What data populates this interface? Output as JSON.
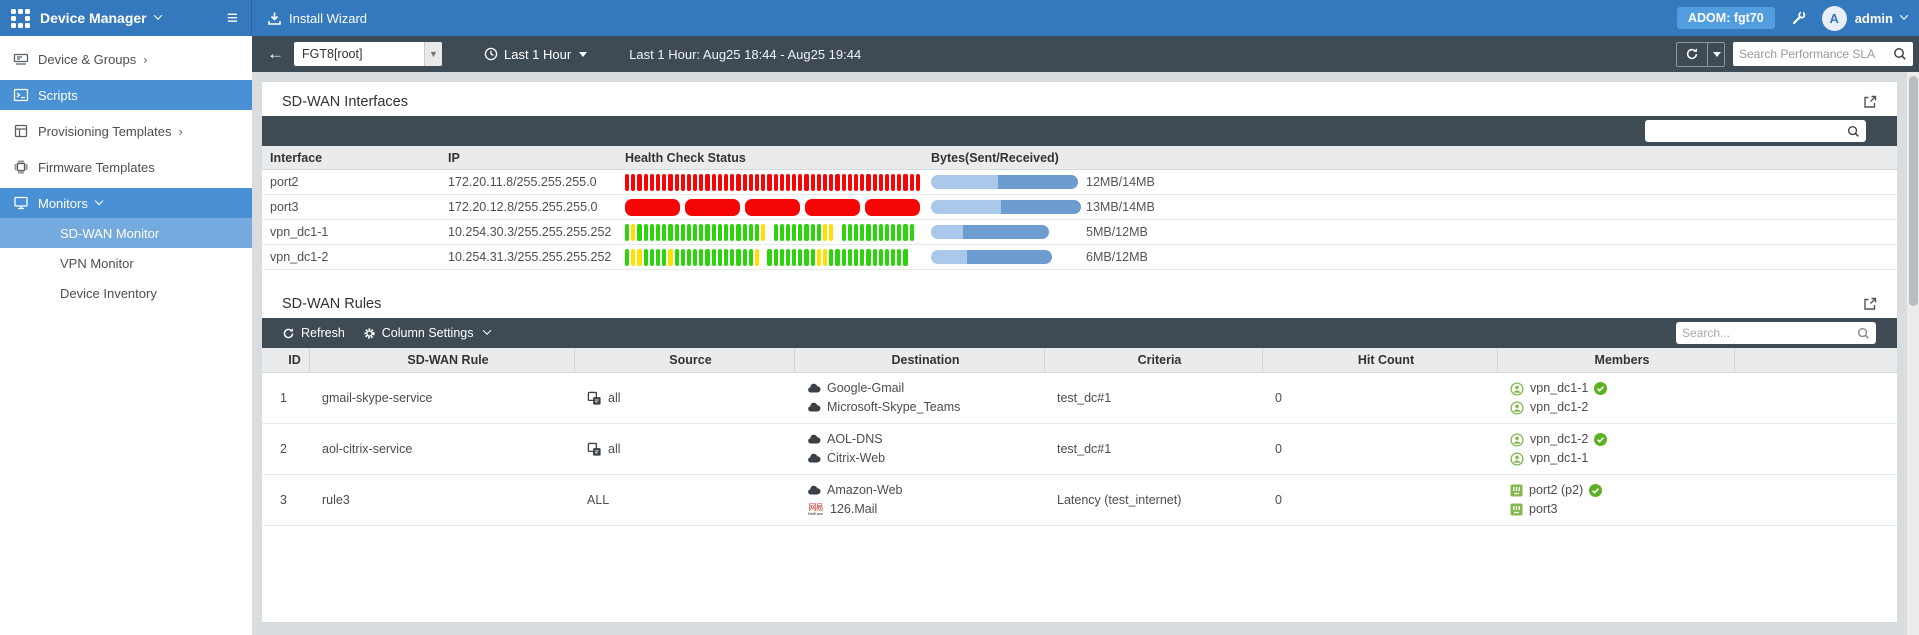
{
  "topbar": {
    "app_title": "Device Manager",
    "install_wizard": "Install Wizard",
    "adom_label": "ADOM: fgt70",
    "avatar_letter": "A",
    "username": "admin",
    "hamburger_glyph": "≡"
  },
  "sidebar": {
    "items": [
      {
        "label": "Device & Groups",
        "chevron": "›"
      },
      {
        "label": "Scripts",
        "chevron": ""
      },
      {
        "label": "Provisioning Templates",
        "chevron": "›"
      },
      {
        "label": "Firmware Templates",
        "chevron": ""
      },
      {
        "label": "Monitors",
        "chevron": ""
      }
    ],
    "subitems": [
      {
        "label": "SD-WAN Monitor"
      },
      {
        "label": "VPN Monitor"
      },
      {
        "label": "Device Inventory"
      }
    ]
  },
  "toolbar": {
    "back_glyph": "←",
    "device_select_value": "FGT8[root]",
    "select_caret": "▼",
    "time_range_button": "Last 1 Hour",
    "time_range_text": "Last 1 Hour: Aug25 18:44 - Aug25 19:44",
    "search_placeholder": "Search Performance SLA"
  },
  "interfaces_panel": {
    "title": "SD-WAN Interfaces",
    "search_placeholder": "",
    "columns": [
      "Interface",
      "IP",
      "Health Check Status",
      "Bytes(Sent/Received)"
    ],
    "rows": [
      {
        "interface": "port2",
        "ip": "172.20.11.8/255.255.255.0",
        "health": "rrrrrrrrrrrrrrrrrrrrrrrrrrrrrrrrrrrrrrrrrrrrrrrr",
        "bytes": "12MB/14MB",
        "bar": {
          "light": 67,
          "dark": 80
        }
      },
      {
        "interface": "port3",
        "ip": "172.20.12.8/255.255.255.0",
        "health": "RRRRR",
        "bytes": "13MB/14MB",
        "bar": {
          "light": 70,
          "dark": 80
        }
      },
      {
        "interface": "vpn_dc1-1",
        "ip": "10.254.30.3/255.255.255.252",
        "health": "gyggggggggggggggggggggy_ggggggggyy_gggggggggggg",
        "bytes": "5MB/12MB",
        "bar": {
          "light": 32,
          "dark": 86
        }
      },
      {
        "interface": "vpn_dc1-2",
        "ip": "10.254.31.3/255.255.255.252",
        "health": "gyyggggygggggggggggggy_ggggggggyyggggggggggggg",
        "bytes": "6MB/12MB",
        "bar": {
          "light": 36,
          "dark": 85
        }
      }
    ]
  },
  "rules_panel": {
    "title": "SD-WAN Rules",
    "refresh_label": "Refresh",
    "column_settings_label": "Column Settings",
    "search_placeholder": "Search...",
    "columns": [
      "ID",
      "SD-WAN Rule",
      "Source",
      "Destination",
      "Criteria",
      "Hit Count",
      "Members"
    ],
    "netease_glyph": "网易",
    "netease_caption": "NetEase",
    "rows": [
      {
        "id": "1",
        "rule": "gmail-skype-service",
        "source": {
          "icon": "address-group",
          "label": "all"
        },
        "destinations": [
          {
            "icon": "app",
            "label": "Google-Gmail"
          },
          {
            "icon": "app",
            "label": "Microsoft-Skype_Teams"
          }
        ],
        "criteria": "test_dc#1",
        "hit_count": "0",
        "members": [
          {
            "icon": "vpn",
            "label": "vpn_dc1-1",
            "check": true
          },
          {
            "icon": "vpn",
            "label": "vpn_dc1-2",
            "check": false
          }
        ]
      },
      {
        "id": "2",
        "rule": "aol-citrix-service",
        "source": {
          "icon": "address-group",
          "label": "all"
        },
        "destinations": [
          {
            "icon": "app",
            "label": "AOL-DNS"
          },
          {
            "icon": "app",
            "label": "Citrix-Web"
          }
        ],
        "criteria": "test_dc#1",
        "hit_count": "0",
        "members": [
          {
            "icon": "vpn",
            "label": "vpn_dc1-2",
            "check": true
          },
          {
            "icon": "vpn",
            "label": "vpn_dc1-1",
            "check": false
          }
        ]
      },
      {
        "id": "3",
        "rule": "rule3",
        "source": {
          "icon": "none",
          "label": "ALL"
        },
        "destinations": [
          {
            "icon": "app",
            "label": "Amazon-Web"
          },
          {
            "icon": "netease",
            "label": "126.Mail"
          }
        ],
        "criteria": "Latency (test_internet)",
        "hit_count": "0",
        "members": [
          {
            "icon": "port",
            "label": "port2 (p2)",
            "check": true
          },
          {
            "icon": "port",
            "label": "port3",
            "check": false
          }
        ]
      }
    ]
  },
  "colors": {
    "health_red": "#f60505",
    "health_green": "#2bd40b",
    "health_yellow": "#ffe100",
    "bytes_light": "#aac8ea",
    "bytes_dark": "#6d9cd1",
    "member_green": "#84b94e",
    "check_green": "#5cb024",
    "icon_dark": "#3b4046"
  }
}
